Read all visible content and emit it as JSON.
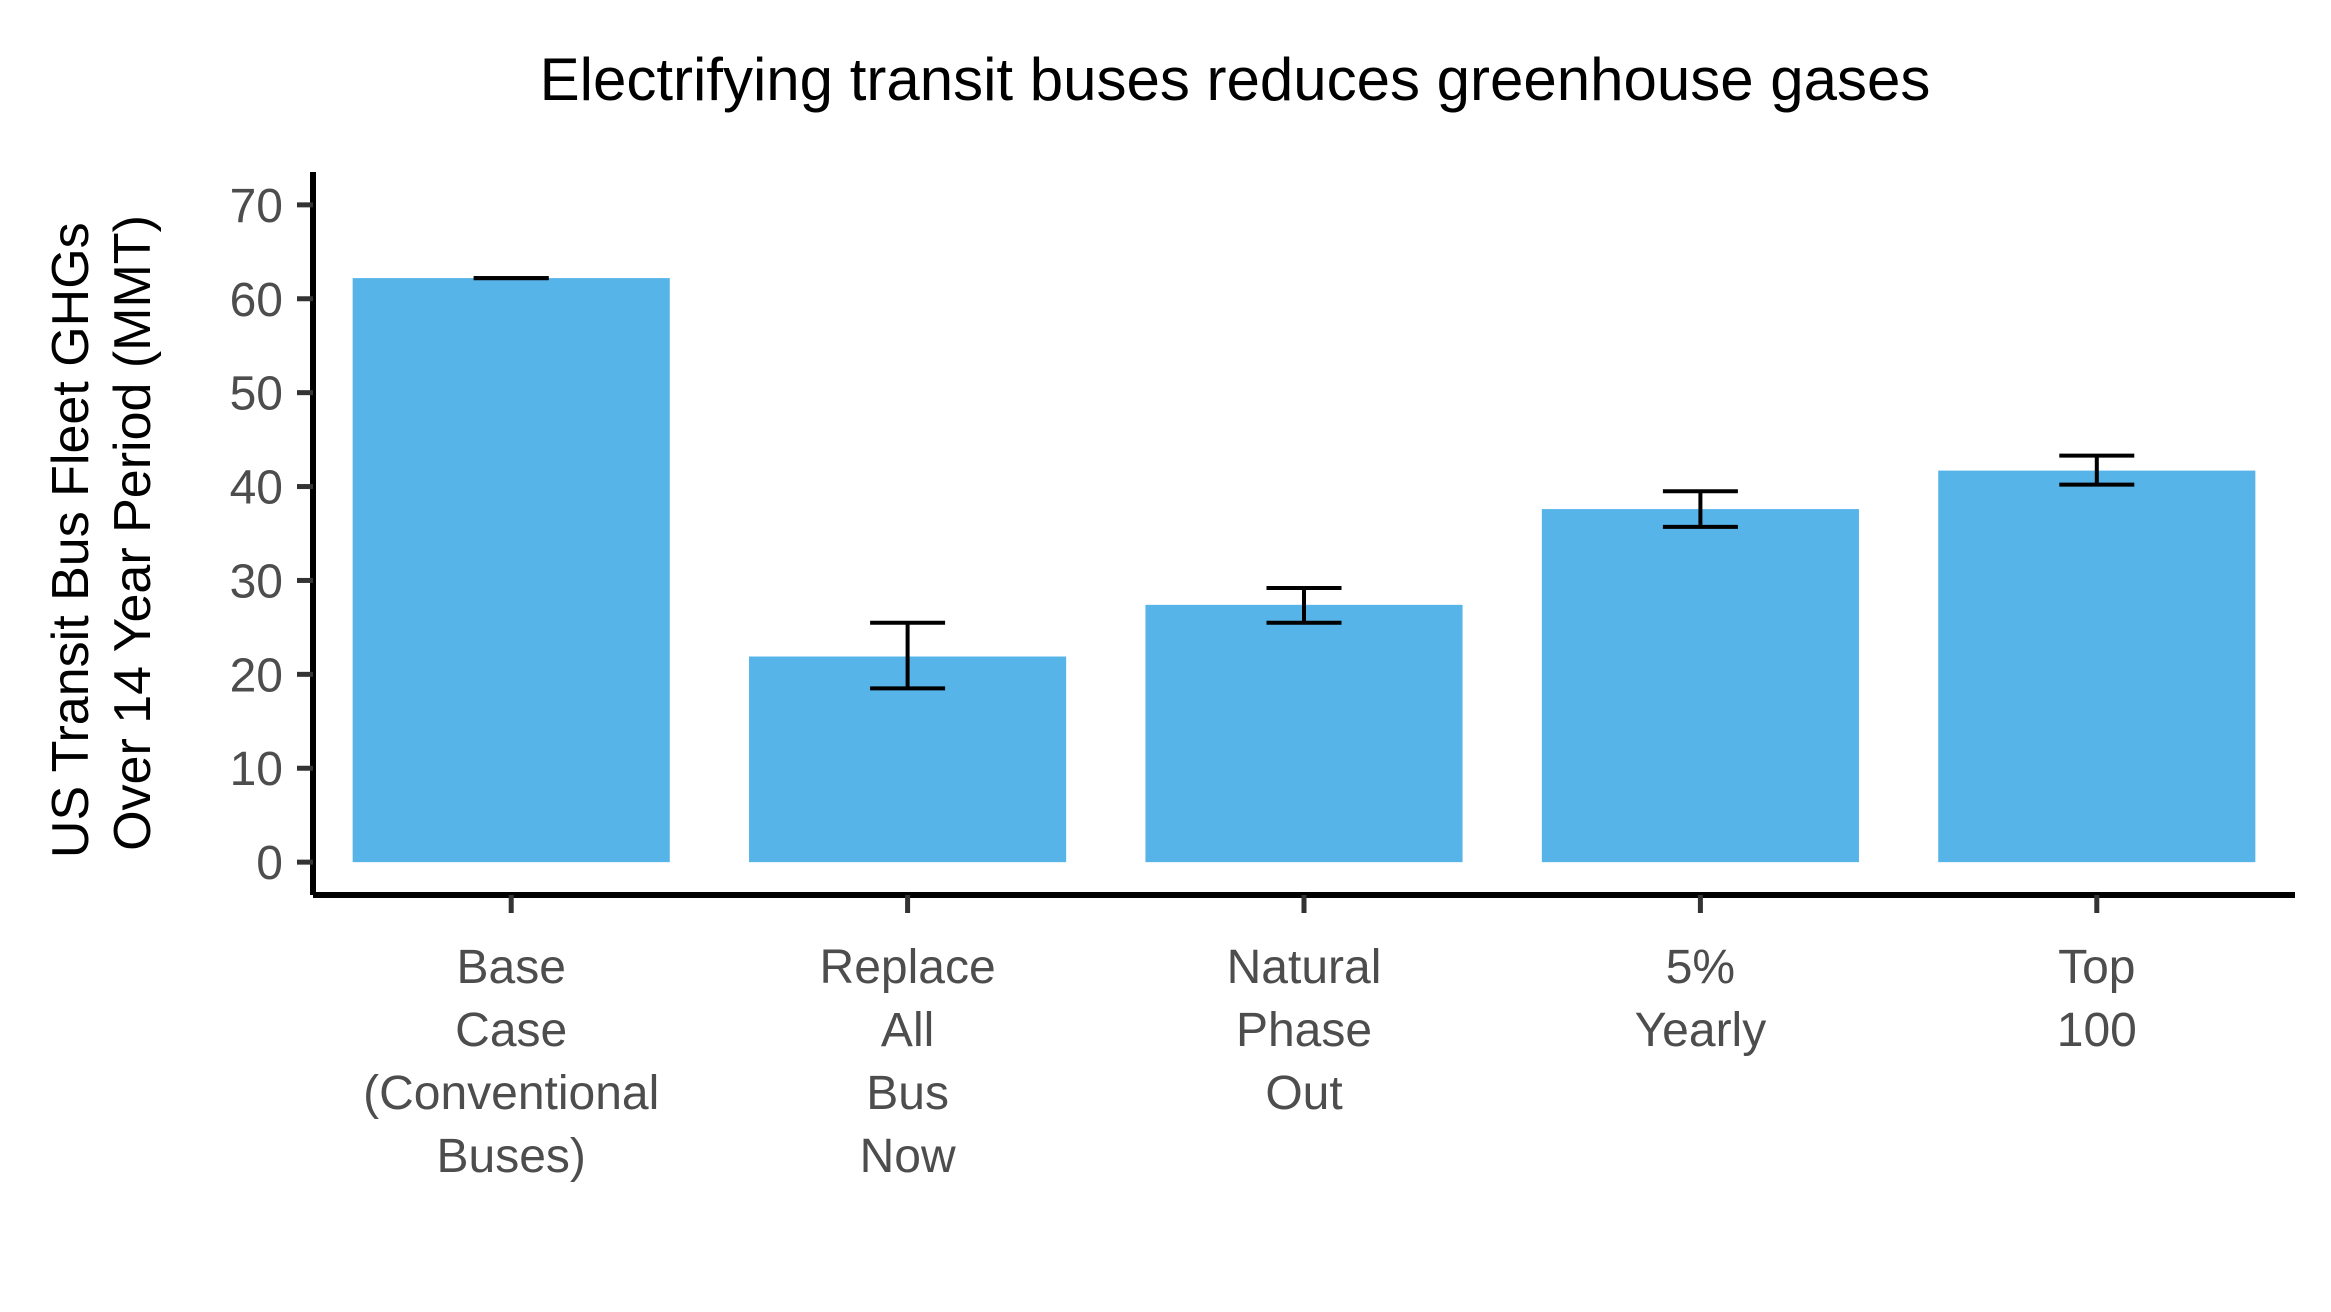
{
  "chart_data": {
    "type": "bar",
    "title": "Electrifying transit buses reduces greenhouse gases",
    "ylabel_lines": [
      "US Transit Bus Fleet GHGs",
      "Over 14 Year Period (MMT)"
    ],
    "xlabel": "",
    "ylim": [
      -3.5,
      73.5
    ],
    "yticks": [
      0,
      10,
      20,
      30,
      40,
      50,
      60,
      70
    ],
    "grid": false,
    "legend": "none",
    "bar_color": "#56B4E9",
    "categories": [
      [
        "Base",
        "Case",
        "(Conventional",
        "Buses)"
      ],
      [
        "Replace",
        "All",
        "Bus",
        "Now"
      ],
      [
        "Natural",
        "Phase",
        "Out"
      ],
      [
        "5%",
        "Yearly"
      ],
      [
        "Top",
        "100"
      ]
    ],
    "values": [
      62.2,
      21.9,
      27.4,
      37.6,
      41.7
    ],
    "error_low": [
      62.2,
      18.5,
      25.5,
      35.7,
      40.2
    ],
    "error_high": [
      62.2,
      25.5,
      29.2,
      39.5,
      43.3
    ]
  }
}
